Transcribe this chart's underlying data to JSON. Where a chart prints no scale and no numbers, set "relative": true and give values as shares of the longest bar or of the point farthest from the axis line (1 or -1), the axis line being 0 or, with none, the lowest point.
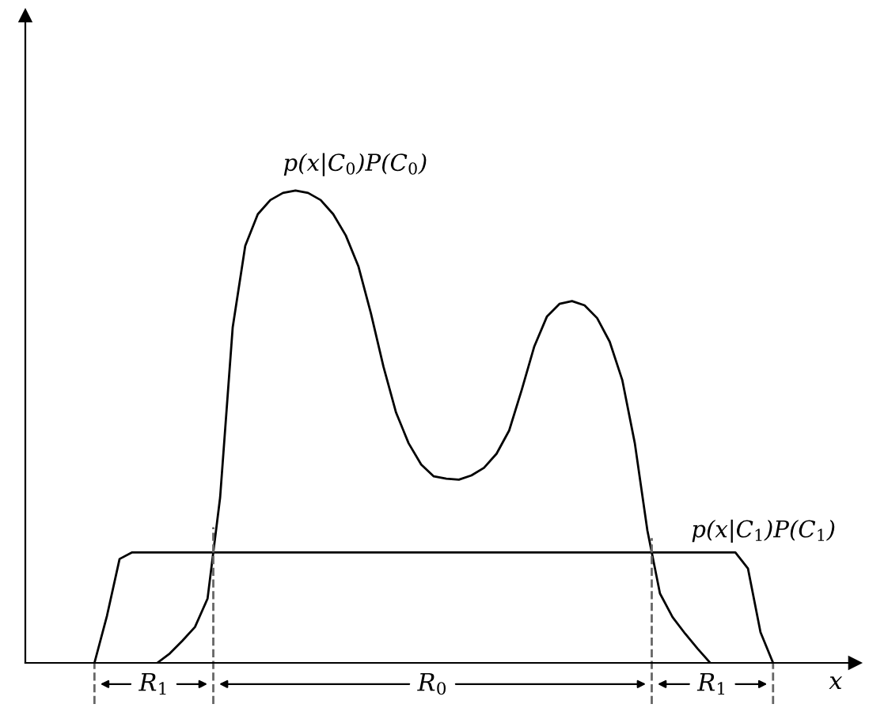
{
  "chart_data": {
    "type": "line",
    "relative": true,
    "xlabel": "x",
    "tick_labels": false,
    "legend": false,
    "marker": "none",
    "line_style": "solid",
    "categories": [
      null,
      null,
      null,
      null,
      null,
      null,
      null,
      null,
      null,
      null,
      null,
      null,
      null,
      null,
      null,
      null,
      null,
      null,
      null,
      null,
      null,
      null,
      null,
      null,
      null,
      null,
      null,
      null,
      null,
      null,
      null,
      null,
      null,
      null,
      null,
      null,
      null,
      null,
      null,
      null,
      null,
      null,
      null,
      null,
      null,
      null,
      null,
      null,
      null,
      null,
      null,
      null,
      null,
      null,
      null,
      null,
      null,
      null,
      null,
      null,
      null,
      null,
      null,
      null,
      null,
      null
    ],
    "series": [
      {
        "name": "p(x|C$_{0}$)P(C$_{0}$)",
        "color": "#000000",
        "values": [
          null,
          null,
          null,
          null,
          null,
          null,
          null,
          null,
          null,
          null,
          0,
          0.02,
          0.047,
          0.076,
          0.136,
          0.35,
          0.71,
          0.883,
          0.95,
          0.98,
          0.995,
          1,
          0.995,
          0.98,
          0.95,
          0.905,
          0.84,
          0.74,
          0.627,
          0.53,
          0.465,
          0.42,
          0.395,
          0.39,
          0.388,
          0.397,
          0.413,
          0.443,
          0.492,
          0.578,
          0.67,
          0.733,
          0.76,
          0.766,
          0.757,
          0.73,
          0.68,
          0.599,
          0.465,
          0.28,
          0.147,
          0.097,
          0.062,
          0.03,
          0,
          null,
          null,
          null,
          null,
          null,
          null,
          null,
          null,
          null,
          null,
          null
        ]
      },
      {
        "name": "p(x|C$_{1}$)P(C$_{1}$)",
        "color": "#000000",
        "values": [
          null,
          null,
          null,
          null,
          null,
          0,
          0.1,
          0.22,
          0.234,
          0.234,
          0.234,
          0.234,
          0.234,
          0.234,
          0.234,
          0.234,
          0.234,
          0.234,
          0.234,
          0.234,
          0.234,
          0.234,
          0.234,
          0.234,
          0.234,
          0.234,
          0.234,
          0.234,
          0.234,
          0.234,
          0.234,
          0.234,
          0.234,
          0.234,
          0.234,
          0.234,
          0.234,
          0.234,
          0.234,
          0.234,
          0.234,
          0.234,
          0.234,
          0.234,
          0.234,
          0.234,
          0.234,
          0.234,
          0.234,
          0.234,
          0.234,
          0.234,
          0.234,
          0.234,
          0.234,
          0.234,
          0.234,
          0.2,
          0.065,
          0,
          null,
          null,
          null,
          null,
          null,
          null
        ]
      }
    ],
    "annotations": [
      "R$_{1}$",
      "R$_{0}$",
      "R$_{1}$"
    ]
  }
}
